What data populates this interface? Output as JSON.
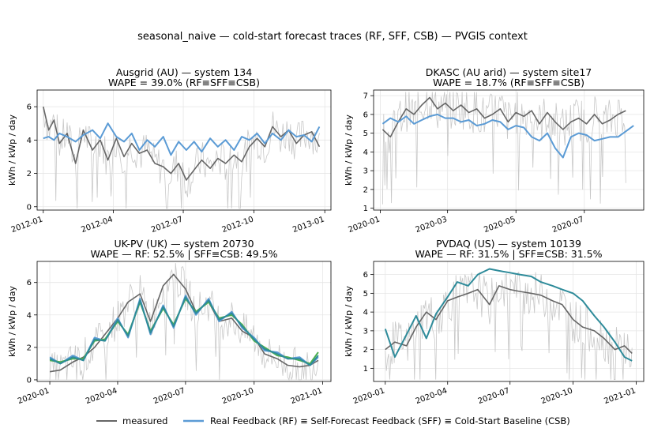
{
  "figure": {
    "suptitle": "seasonal_naive — cold-start forecast traces (RF, SFF, CSB) — PVGIS context"
  },
  "legend": {
    "measured_label": "measured",
    "rf_label": "Real Feedback (RF) ≡ Self-Forecast Feedback (SFF) ≡ Cold-Start Baseline (CSB)",
    "measured_color": "#666666",
    "rf_color": "#5b9bd5",
    "placement": "bottom-center"
  },
  "chart_data": [
    {
      "type": "line",
      "title": "Ausgrid (AU) — system 134",
      "subtitle": "WAPE = 39.0% (RF≡SFF≡CSB)",
      "ylabel": "kWh / kWp / day",
      "xlim": [
        "2011-12-24",
        "2013-01-09"
      ],
      "ylim": [
        -0.2,
        7.0
      ],
      "yticks": [
        0,
        2,
        4,
        6
      ],
      "xticks": [
        {
          "date": "2012-01-01",
          "label": "2012-01"
        },
        {
          "date": "2012-04-01",
          "label": "2012-04"
        },
        {
          "date": "2012-07-01",
          "label": "2012-07"
        },
        {
          "date": "2012-10-01",
          "label": "2012-10"
        },
        {
          "date": "2013-01-01",
          "label": "2013-01"
        }
      ],
      "grid": true,
      "series": [
        {
          "name": "measured",
          "color": "#666666",
          "x": [
            "2012-01-01",
            "2012-01-08",
            "2012-01-15",
            "2012-01-22",
            "2012-02-01",
            "2012-02-12",
            "2012-02-22",
            "2012-03-05",
            "2012-03-15",
            "2012-03-25",
            "2012-04-05",
            "2012-04-15",
            "2012-04-25",
            "2012-05-05",
            "2012-05-15",
            "2012-05-25",
            "2012-06-05",
            "2012-06-15",
            "2012-06-25",
            "2012-07-05",
            "2012-07-15",
            "2012-07-25",
            "2012-08-05",
            "2012-08-15",
            "2012-08-25",
            "2012-09-05",
            "2012-09-15",
            "2012-09-25",
            "2012-10-05",
            "2012-10-15",
            "2012-10-25",
            "2012-11-05",
            "2012-11-15",
            "2012-11-25",
            "2012-12-05",
            "2012-12-15",
            "2012-12-25"
          ],
          "y": [
            6.0,
            4.6,
            5.2,
            3.8,
            4.4,
            2.6,
            4.6,
            3.4,
            4.0,
            2.8,
            4.1,
            3.0,
            3.8,
            3.2,
            3.4,
            2.6,
            2.4,
            2.0,
            2.6,
            1.6,
            2.2,
            2.8,
            2.3,
            2.9,
            2.6,
            3.1,
            2.7,
            3.6,
            4.1,
            3.6,
            4.8,
            4.2,
            4.6,
            3.8,
            4.3,
            4.5,
            3.6
          ]
        },
        {
          "name": "",
          "color": "#5b9bd5",
          "x": [
            "2012-01-01",
            "2012-01-08",
            "2012-01-15",
            "2012-01-22",
            "2012-02-01",
            "2012-02-12",
            "2012-02-22",
            "2012-03-05",
            "2012-03-15",
            "2012-03-25",
            "2012-04-05",
            "2012-04-15",
            "2012-04-25",
            "2012-05-05",
            "2012-05-15",
            "2012-05-25",
            "2012-06-05",
            "2012-06-15",
            "2012-06-25",
            "2012-07-05",
            "2012-07-15",
            "2012-07-25",
            "2012-08-05",
            "2012-08-15",
            "2012-08-25",
            "2012-09-05",
            "2012-09-15",
            "2012-09-25",
            "2012-10-05",
            "2012-10-15",
            "2012-10-25",
            "2012-11-05",
            "2012-11-15",
            "2012-11-25",
            "2012-12-05",
            "2012-12-15",
            "2012-12-25"
          ],
          "y": [
            4.1,
            4.2,
            4.0,
            4.4,
            4.2,
            3.9,
            4.3,
            4.6,
            4.1,
            5.0,
            4.2,
            3.9,
            4.4,
            3.4,
            4.0,
            3.6,
            4.2,
            3.1,
            3.9,
            3.4,
            3.9,
            3.3,
            4.1,
            3.6,
            4.0,
            3.4,
            4.2,
            4.0,
            4.4,
            3.8,
            4.4,
            4.0,
            4.6,
            4.2,
            4.3,
            3.9,
            4.8
          ]
        }
      ]
    },
    {
      "type": "line",
      "title": "DKASC (AU arid) — system site17",
      "subtitle": "WAPE = 18.7% (RF≡SFF≡CSB)",
      "ylabel": "kWh / kWp / day",
      "xlim": [
        "2019-12-26",
        "2020-08-23"
      ],
      "ylim": [
        0.9,
        7.3
      ],
      "yticks": [
        1,
        2,
        3,
        4,
        5,
        6,
        7
      ],
      "xticks": [
        {
          "date": "2020-01-01",
          "label": "2020-01"
        },
        {
          "date": "2020-03-01",
          "label": "2020-03"
        },
        {
          "date": "2020-05-01",
          "label": "2020-05"
        },
        {
          "date": "2020-07-01",
          "label": "2020-07"
        }
      ],
      "grid": true,
      "series": [
        {
          "name": "measured",
          "color": "#666666",
          "x": [
            "2020-01-03",
            "2020-01-10",
            "2020-01-17",
            "2020-01-24",
            "2020-01-31",
            "2020-02-07",
            "2020-02-14",
            "2020-02-21",
            "2020-02-28",
            "2020-03-06",
            "2020-03-13",
            "2020-03-20",
            "2020-03-27",
            "2020-04-03",
            "2020-04-10",
            "2020-04-17",
            "2020-04-24",
            "2020-05-01",
            "2020-05-08",
            "2020-05-15",
            "2020-05-22",
            "2020-05-29",
            "2020-06-05",
            "2020-06-12",
            "2020-06-19",
            "2020-06-26",
            "2020-07-03",
            "2020-07-10",
            "2020-07-17",
            "2020-07-24",
            "2020-07-31",
            "2020-08-07"
          ],
          "y": [
            5.2,
            4.8,
            5.6,
            6.3,
            6.0,
            6.5,
            6.9,
            6.3,
            6.6,
            6.2,
            6.5,
            6.1,
            6.3,
            5.8,
            6.0,
            6.3,
            5.6,
            6.1,
            5.9,
            6.2,
            5.5,
            6.1,
            5.6,
            5.2,
            5.6,
            5.8,
            5.5,
            6.0,
            5.5,
            5.7,
            6.0,
            6.2
          ]
        },
        {
          "name": "",
          "color": "#5b9bd5",
          "x": [
            "2020-01-03",
            "2020-01-10",
            "2020-01-17",
            "2020-01-24",
            "2020-01-31",
            "2020-02-07",
            "2020-02-14",
            "2020-02-21",
            "2020-02-28",
            "2020-03-06",
            "2020-03-13",
            "2020-03-20",
            "2020-03-27",
            "2020-04-03",
            "2020-04-10",
            "2020-04-17",
            "2020-04-24",
            "2020-05-01",
            "2020-05-08",
            "2020-05-15",
            "2020-05-22",
            "2020-05-29",
            "2020-06-05",
            "2020-06-12",
            "2020-06-19",
            "2020-06-26",
            "2020-07-03",
            "2020-07-10",
            "2020-07-17",
            "2020-07-24",
            "2020-07-31",
            "2020-08-07",
            "2020-08-14"
          ],
          "y": [
            5.5,
            5.8,
            5.6,
            5.9,
            5.5,
            5.7,
            5.9,
            6.0,
            5.8,
            5.8,
            5.6,
            5.7,
            5.4,
            5.5,
            5.7,
            5.6,
            5.2,
            5.4,
            5.3,
            4.8,
            4.6,
            5.0,
            4.2,
            3.7,
            4.8,
            5.0,
            4.9,
            4.6,
            4.7,
            4.8,
            4.8,
            5.1,
            5.4
          ]
        }
      ]
    },
    {
      "type": "line",
      "title": "UK-PV (UK) — system 20730",
      "subtitle": "WAPE — RF: 52.5% | SFF≡CSB: 49.5%",
      "ylabel": "kWh / kWp / day",
      "xlim": [
        "2019-12-15",
        "2021-01-12"
      ],
      "ylim": [
        -0.1,
        7.3
      ],
      "yticks": [
        0,
        2,
        4,
        6
      ],
      "xticks": [
        {
          "date": "2020-01-01",
          "label": "2020-01"
        },
        {
          "date": "2020-04-01",
          "label": "2020-04"
        },
        {
          "date": "2020-07-01",
          "label": "2020-07"
        },
        {
          "date": "2020-10-01",
          "label": "2020-10"
        },
        {
          "date": "2021-01-01",
          "label": "2021-01"
        }
      ],
      "grid": true,
      "series": [
        {
          "name": "measured",
          "color": "#666666",
          "x": [
            "2020-01-01",
            "2020-01-15",
            "2020-02-01",
            "2020-02-15",
            "2020-03-01",
            "2020-03-15",
            "2020-04-01",
            "2020-04-15",
            "2020-05-01",
            "2020-05-15",
            "2020-06-01",
            "2020-06-15",
            "2020-07-01",
            "2020-07-15",
            "2020-08-01",
            "2020-08-15",
            "2020-09-01",
            "2020-09-15",
            "2020-10-01",
            "2020-10-15",
            "2020-11-01",
            "2020-11-15",
            "2020-12-01",
            "2020-12-15",
            "2020-12-26"
          ],
          "y": [
            0.5,
            0.6,
            1.1,
            1.4,
            2.0,
            2.8,
            3.8,
            4.8,
            5.3,
            3.6,
            5.8,
            6.5,
            5.6,
            4.2,
            4.8,
            3.6,
            3.8,
            3.0,
            2.6,
            1.6,
            1.3,
            0.9,
            0.8,
            0.9,
            1.2
          ]
        },
        {
          "name": "",
          "color": "#5b9bd5",
          "x": [
            "2020-01-01",
            "2020-01-15",
            "2020-02-01",
            "2020-02-15",
            "2020-03-01",
            "2020-03-15",
            "2020-04-01",
            "2020-04-15",
            "2020-05-01",
            "2020-05-15",
            "2020-06-01",
            "2020-06-15",
            "2020-07-01",
            "2020-07-15",
            "2020-08-01",
            "2020-08-15",
            "2020-09-01",
            "2020-09-15",
            "2020-10-01",
            "2020-10-15",
            "2020-11-01",
            "2020-11-15",
            "2020-12-01",
            "2020-12-15",
            "2020-12-26"
          ],
          "y": [
            1.4,
            1.0,
            1.5,
            1.2,
            2.6,
            2.4,
            3.8,
            2.6,
            5.0,
            2.8,
            4.6,
            3.2,
            5.2,
            4.0,
            5.0,
            3.6,
            4.2,
            3.2,
            2.6,
            1.8,
            1.7,
            1.3,
            1.4,
            0.9,
            1.4
          ]
        },
        {
          "name": "",
          "color": "#4caf50",
          "x": [
            "2020-01-01",
            "2020-01-15",
            "2020-02-01",
            "2020-02-15",
            "2020-03-01",
            "2020-03-15",
            "2020-04-01",
            "2020-04-15",
            "2020-05-01",
            "2020-05-15",
            "2020-06-01",
            "2020-06-15",
            "2020-07-01",
            "2020-07-15",
            "2020-08-01",
            "2020-08-15",
            "2020-09-01",
            "2020-09-15",
            "2020-10-01",
            "2020-10-15",
            "2020-11-01",
            "2020-11-15",
            "2020-12-01",
            "2020-12-15",
            "2020-12-26"
          ],
          "y": [
            1.2,
            1.1,
            1.3,
            1.3,
            2.4,
            2.5,
            3.6,
            2.8,
            4.8,
            3.0,
            4.4,
            3.4,
            5.0,
            4.2,
            4.8,
            3.8,
            4.0,
            3.4,
            2.4,
            2.0,
            1.5,
            1.4,
            1.2,
            1.0,
            1.7
          ]
        },
        {
          "name": "",
          "color": "#2e8b9a",
          "x": [
            "2020-01-01",
            "2020-01-15",
            "2020-02-01",
            "2020-02-15",
            "2020-03-01",
            "2020-03-15",
            "2020-04-01",
            "2020-04-15",
            "2020-05-01",
            "2020-05-15",
            "2020-06-01",
            "2020-06-15",
            "2020-07-01",
            "2020-07-15",
            "2020-08-01",
            "2020-08-15",
            "2020-09-01",
            "2020-09-15",
            "2020-10-01",
            "2020-10-15",
            "2020-11-01",
            "2020-11-15",
            "2020-12-01",
            "2020-12-15",
            "2020-12-26"
          ],
          "y": [
            1.3,
            1.0,
            1.4,
            1.2,
            2.5,
            2.4,
            3.7,
            2.7,
            4.9,
            2.9,
            4.5,
            3.3,
            5.1,
            4.1,
            4.9,
            3.7,
            4.1,
            3.3,
            2.5,
            1.9,
            1.6,
            1.3,
            1.3,
            0.9,
            1.5
          ]
        }
      ]
    },
    {
      "type": "line",
      "title": "PVDAQ (US) — system 10139",
      "subtitle": "WAPE — RF: 31.5% | SFF≡CSB: 31.5%",
      "ylabel": "kWh / kWp / day",
      "xlim": [
        "2019-12-15",
        "2021-01-12"
      ],
      "ylim": [
        0.3,
        6.7
      ],
      "yticks": [
        1,
        2,
        3,
        4,
        5,
        6
      ],
      "xticks": [
        {
          "date": "2020-01-01",
          "label": "2020-01"
        },
        {
          "date": "2020-04-01",
          "label": "2020-04"
        },
        {
          "date": "2020-07-01",
          "label": "2020-07"
        },
        {
          "date": "2020-10-01",
          "label": "2020-10"
        },
        {
          "date": "2021-01-01",
          "label": "2021-01"
        }
      ],
      "grid": true,
      "series": [
        {
          "name": "measured",
          "color": "#666666",
          "x": [
            "2020-01-01",
            "2020-01-15",
            "2020-02-01",
            "2020-02-15",
            "2020-03-01",
            "2020-03-15",
            "2020-04-01",
            "2020-04-15",
            "2020-05-01",
            "2020-05-15",
            "2020-06-01",
            "2020-06-15",
            "2020-07-01",
            "2020-07-15",
            "2020-08-01",
            "2020-08-15",
            "2020-09-01",
            "2020-09-15",
            "2020-10-01",
            "2020-10-15",
            "2020-11-01",
            "2020-11-15",
            "2020-12-01",
            "2020-12-15",
            "2020-12-26"
          ],
          "y": [
            2.0,
            2.4,
            2.2,
            3.2,
            4.0,
            3.6,
            4.6,
            4.8,
            5.0,
            5.2,
            4.4,
            5.4,
            5.2,
            5.1,
            5.0,
            4.9,
            4.6,
            4.4,
            3.6,
            3.2,
            3.0,
            2.6,
            2.0,
            2.2,
            1.8
          ]
        },
        {
          "name": "",
          "color": "#2e8b9a",
          "x": [
            "2020-01-01",
            "2020-01-15",
            "2020-02-01",
            "2020-02-15",
            "2020-03-01",
            "2020-03-15",
            "2020-04-01",
            "2020-04-15",
            "2020-05-01",
            "2020-05-15",
            "2020-06-01",
            "2020-06-15",
            "2020-07-01",
            "2020-07-15",
            "2020-08-01",
            "2020-08-15",
            "2020-09-01",
            "2020-09-15",
            "2020-10-01",
            "2020-10-15",
            "2020-11-01",
            "2020-11-15",
            "2020-12-01",
            "2020-12-15",
            "2020-12-26"
          ],
          "y": [
            3.1,
            1.6,
            2.8,
            3.8,
            2.6,
            3.9,
            4.8,
            5.6,
            5.4,
            6.0,
            6.3,
            6.2,
            6.1,
            6.0,
            5.9,
            5.6,
            5.4,
            5.2,
            5.0,
            4.6,
            3.8,
            3.2,
            2.4,
            1.6,
            1.4
          ]
        }
      ]
    }
  ]
}
